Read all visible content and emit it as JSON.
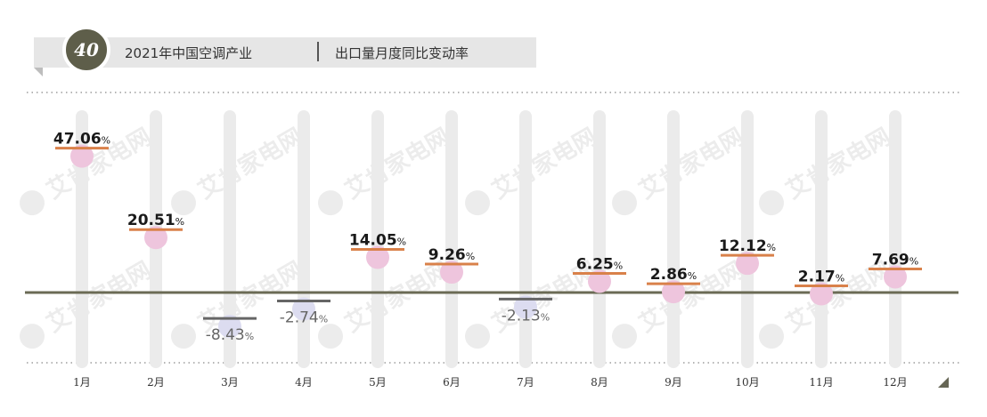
{
  "header": {
    "page_number": "40",
    "title": "2021年中国空调产业",
    "subtitle": "出口量月度同比变动率"
  },
  "watermark": {
    "text": "艾肯家电网"
  },
  "colors": {
    "header_bg": "#e6e6e6",
    "badge_bg": "#5e5e4a",
    "baseline": "#6b6b55",
    "column": "#ebebeb",
    "positive_line": "#d9814a",
    "positive_dot": "#eec5dd",
    "negative_line": "#666666",
    "negative_dot": "#dcdcf0",
    "positive_text": "#1a1a1a",
    "negative_text": "#666666"
  },
  "chart_data": {
    "type": "bar",
    "categories": [
      "1月",
      "2月",
      "3月",
      "4月",
      "5月",
      "6月",
      "7月",
      "8月",
      "9月",
      "10月",
      "11月",
      "12月"
    ],
    "values": [
      47.06,
      20.51,
      -8.43,
      -2.74,
      14.05,
      9.26,
      -2.13,
      6.25,
      2.86,
      12.12,
      2.17,
      7.69
    ],
    "labels": [
      "47.06",
      "20.51",
      "-8.43",
      "-2.74",
      "14.05",
      "9.26",
      "-2.13",
      "6.25",
      "2.86",
      "12.12",
      "2.17",
      "7.69"
    ],
    "unit": "%",
    "title": "出口量月度同比变动率",
    "ylim": [
      -15,
      50
    ],
    "grid": true
  }
}
